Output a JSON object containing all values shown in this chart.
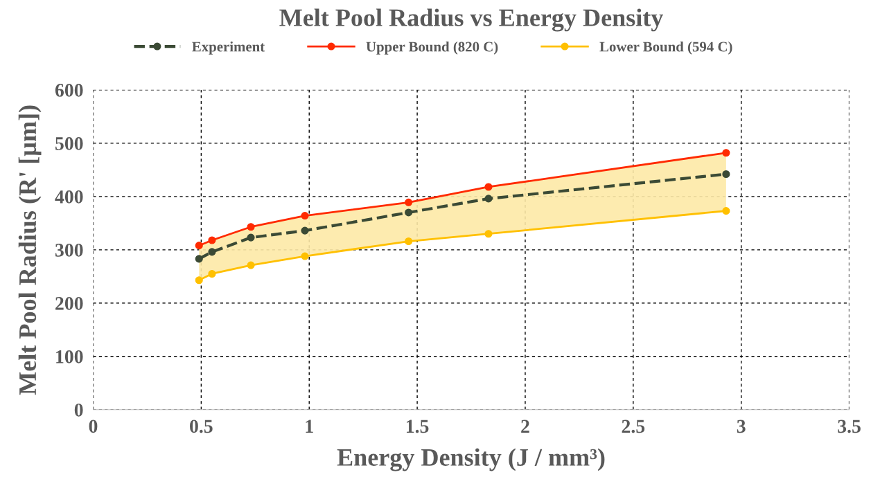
{
  "chart_data": {
    "type": "line",
    "title": "Melt Pool Radius vs Energy Density",
    "xlabel": "Energy Density (J / mm³)",
    "ylabel": "Melt Pool Radius (R' [µm])",
    "x": [
      0.49,
      0.55,
      0.73,
      0.98,
      1.46,
      1.83,
      2.93
    ],
    "series": [
      {
        "name": "Experiment",
        "color": "#3b4a35",
        "line_style": "dashed",
        "values": [
          283,
          296,
          323,
          336,
          370,
          396,
          442
        ],
        "lower": [
          243,
          255,
          271,
          288,
          316,
          330,
          373
        ],
        "upper": [
          308,
          318,
          343,
          364,
          389,
          418,
          482
        ]
      },
      {
        "name": "Upper Bound (820 C)",
        "color": "#ff2a00",
        "line_style": "solid",
        "values": [
          308,
          318,
          343,
          364,
          389,
          418,
          482
        ]
      },
      {
        "name": "Lower Bound (594 C)",
        "color": "#ffc000",
        "line_style": "solid",
        "values": [
          243,
          255,
          271,
          288,
          316,
          330,
          373
        ]
      }
    ],
    "xlim": [
      0,
      3.5
    ],
    "xticks": [
      0,
      0.5,
      1,
      1.5,
      2,
      2.5,
      3,
      3.5
    ],
    "ylim": [
      0,
      600
    ],
    "yticks": [
      0,
      100,
      200,
      300,
      400,
      500,
      600
    ],
    "grid": true,
    "legend": "top",
    "marker": "circle"
  }
}
